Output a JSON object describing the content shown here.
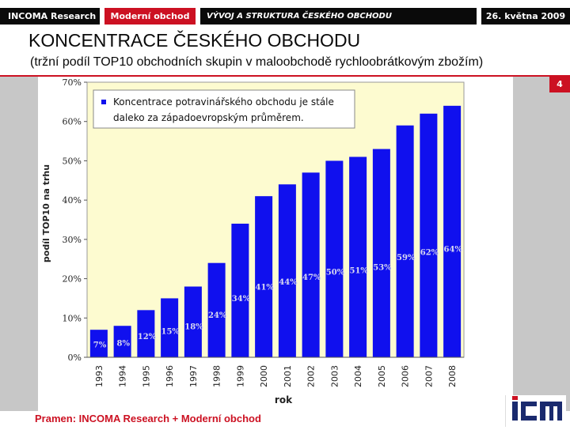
{
  "header": {
    "tag1": "INCOMA Research",
    "tag2": "Moderní obchod",
    "tag3": "VÝVOJ A STRUKTURA ČESKÉHO OBCHODU",
    "date": "26. května 2009"
  },
  "title": "KONCENTRACE ČESKÉHO OBCHODU",
  "subtitle": "(tržní podíl TOP10 obchodních skupin v maloobchodě rychloobrátkovým zbožím)",
  "page_number": "4",
  "source": "Pramen: INCOMA Research + Moderní obchod",
  "logo_text": "iCM",
  "colors": {
    "bar": "#1010ee",
    "plot_bg": "#fdfbd0",
    "accent": "#cc1122",
    "label": "#d8d8f0"
  },
  "chart_data": {
    "type": "bar",
    "categories": [
      "1993",
      "1994",
      "1995",
      "1996",
      "1997",
      "1998",
      "1999",
      "2000",
      "2001",
      "2002",
      "2003",
      "2004",
      "2005",
      "2006",
      "2007",
      "2008"
    ],
    "values": [
      7,
      8,
      12,
      15,
      18,
      24,
      34,
      41,
      44,
      47,
      50,
      51,
      53,
      59,
      62,
      64
    ],
    "data_labels": [
      "7%",
      "8%",
      "12%",
      "15%",
      "18%",
      "24%",
      "34%",
      "41%",
      "44%",
      "47%",
      "50%",
      "51%",
      "53%",
      "59%",
      "62%",
      "64%"
    ],
    "ylabel": "podíl TOP10 na trhu",
    "xlabel": "rok",
    "ylim": [
      0,
      70
    ],
    "yticks": [
      "0%",
      "10%",
      "20%",
      "30%",
      "40%",
      "50%",
      "60%",
      "70%"
    ],
    "grid": false,
    "legend": "top-left",
    "legend_text": [
      "Koncentrace potravinářského obchodu je stále",
      "daleko za západoevropským průměrem."
    ]
  }
}
